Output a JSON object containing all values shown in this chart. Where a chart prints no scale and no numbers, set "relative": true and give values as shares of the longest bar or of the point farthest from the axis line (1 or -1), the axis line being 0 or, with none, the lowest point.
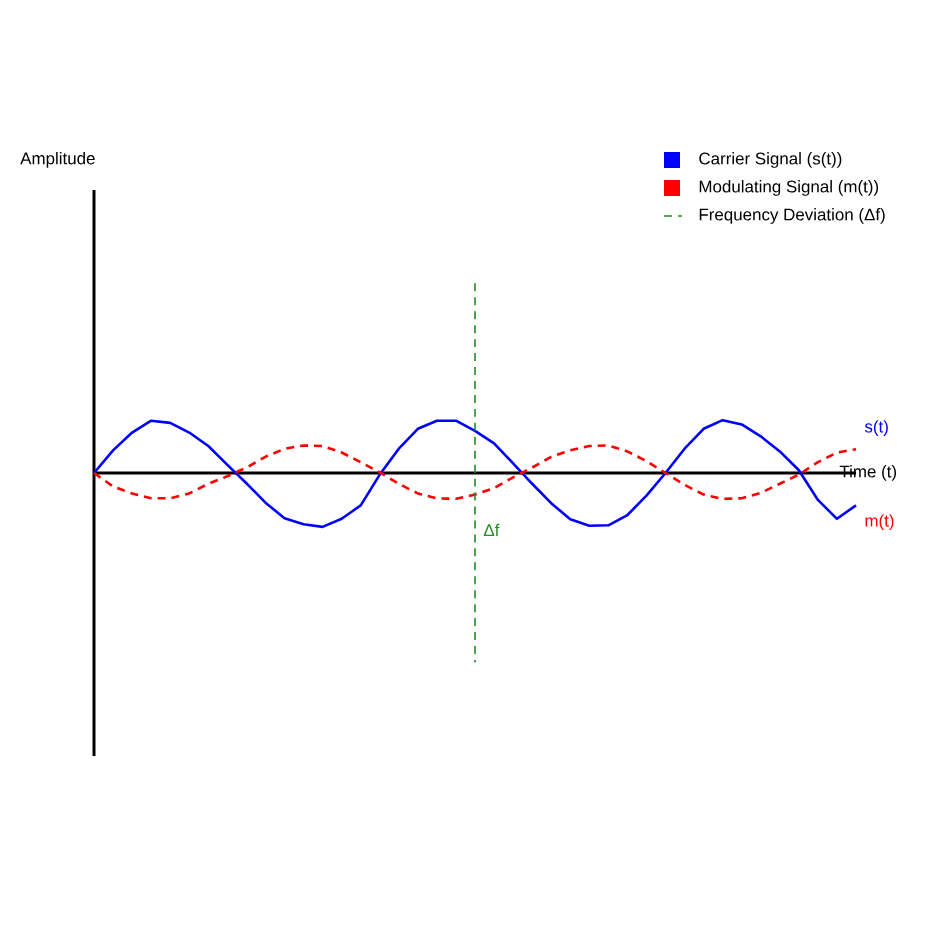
{
  "chart_data": {
    "type": "line",
    "relative": true,
    "xlabel": "Time (t)",
    "legend": "top right",
    "marker": "none",
    "categories": [
      null,
      null,
      null,
      null,
      null,
      null,
      null,
      null,
      null,
      null,
      null,
      null,
      null,
      null,
      null,
      null,
      null,
      null,
      null,
      null,
      null,
      null,
      null,
      null,
      null,
      null,
      null,
      null,
      null,
      null,
      null,
      null,
      null,
      null,
      null,
      null,
      null,
      null,
      null,
      null,
      null
    ],
    "series": [
      {
        "name": "Carrier Signal (s(t))",
        "color": "#0000ff",
        "line_style": "solid",
        "values": [
          0,
          0.42,
          0.75,
          0.97,
          0.93,
          0.75,
          0.5,
          0.15,
          -0.19,
          -0.55,
          -0.84,
          -0.95,
          -1,
          -0.85,
          -0.6,
          -0.03,
          0.45,
          0.82,
          0.97,
          0.97,
          0.78,
          0.55,
          0.18,
          -0.2,
          -0.56,
          -0.86,
          -0.98,
          -0.97,
          -0.78,
          -0.42,
          0,
          0.45,
          0.82,
          0.98,
          0.9,
          0.68,
          0.4,
          0.05,
          -0.5,
          -0.85,
          -0.6
        ]
      },
      {
        "name": "Modulating Signal (m(t))",
        "color": "#ff0000",
        "line_style": "dashed",
        "values": [
          0,
          -0.25,
          -0.38,
          -0.47,
          -0.47,
          -0.38,
          -0.2,
          -0.06,
          0.1,
          0.3,
          0.45,
          0.51,
          0.5,
          0.38,
          0.2,
          0.01,
          -0.2,
          -0.38,
          -0.47,
          -0.48,
          -0.4,
          -0.28,
          -0.08,
          0.1,
          0.3,
          0.42,
          0.5,
          0.51,
          0.4,
          0.22,
          0,
          -0.22,
          -0.4,
          -0.48,
          -0.47,
          -0.37,
          -0.2,
          -0.03,
          0.2,
          0.38,
          0.44
        ]
      }
    ],
    "annotations": [
      "s(t)",
      "m(t)",
      "Δf",
      "Frequency Deviation (Δf)",
      "Amplitude"
    ]
  }
}
